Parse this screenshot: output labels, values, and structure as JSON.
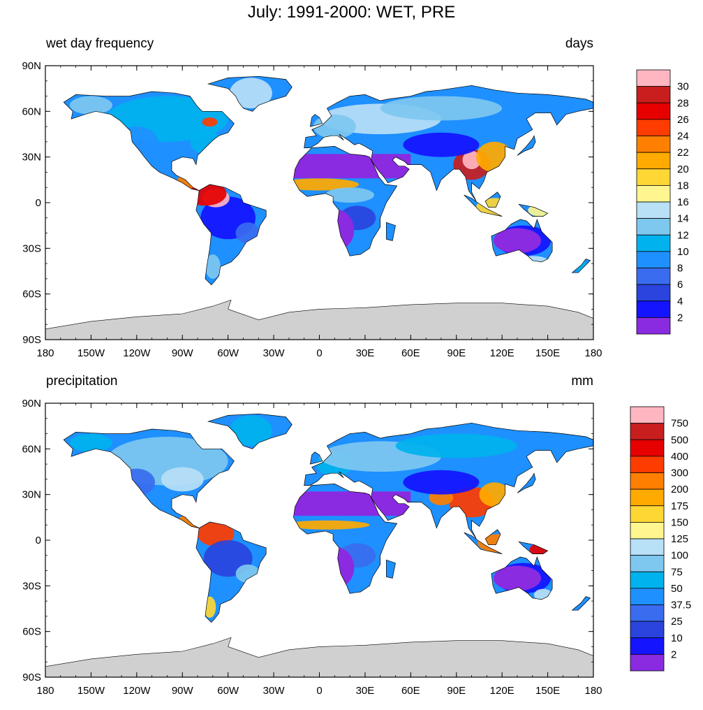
{
  "title": "July: 1991-2000: WET, PRE",
  "lon_labels": [
    "180",
    "150W",
    "120W",
    "90W",
    "60W",
    "30W",
    "0",
    "30E",
    "60E",
    "90E",
    "120E",
    "150E",
    "180"
  ],
  "lat_labels": [
    "90N",
    "60N",
    "30N",
    "0",
    "30S",
    "60S",
    "90S"
  ],
  "colors": [
    "#8a2be2",
    "#1414ff",
    "#2a44dd",
    "#3a6cf0",
    "#1e90ff",
    "#00b2ee",
    "#7ec8f0",
    "#b8e0f6",
    "#fff68f",
    "#ffd735",
    "#ffaa00",
    "#ff7f00",
    "#ff3c00",
    "#e60000",
    "#c81e1e",
    "#ffb6c1"
  ],
  "land_color": "#d0d0d0",
  "panels": [
    {
      "left_label": "wet day frequency",
      "right_label": "days",
      "colorbar_labels": [
        "30",
        "28",
        "26",
        "24",
        "22",
        "20",
        "18",
        "16",
        "14",
        "12",
        "10",
        "8",
        "6",
        "4",
        "2"
      ]
    },
    {
      "left_label": "precipitation",
      "right_label": "mm",
      "colorbar_labels": [
        "750",
        "500",
        "400",
        "300",
        "200",
        "175",
        "150",
        "125",
        "100",
        "75",
        "50",
        "37.5",
        "25",
        "10",
        "2"
      ]
    }
  ]
}
